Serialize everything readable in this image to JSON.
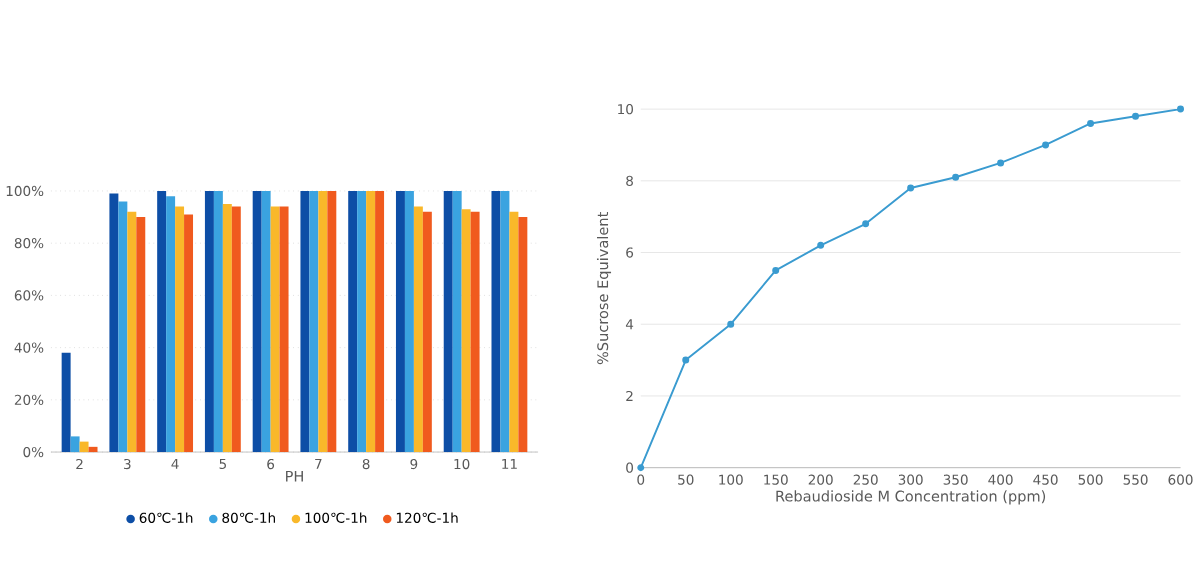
{
  "chart_data": [
    {
      "type": "bar",
      "xlabel": "PH",
      "categories": [
        "2",
        "3",
        "4",
        "5",
        "6",
        "7",
        "8",
        "9",
        "10",
        "11"
      ],
      "series": [
        {
          "name": "60℃-1h",
          "color": "#0d4ea6",
          "values": [
            38,
            99,
            100,
            100,
            100,
            100,
            100,
            100,
            100,
            100
          ]
        },
        {
          "name": "80℃-1h",
          "color": "#3aa3e0",
          "values": [
            6,
            96,
            98,
            100,
            100,
            100,
            100,
            100,
            100,
            100
          ]
        },
        {
          "name": "100℃-1h",
          "color": "#f9b82a",
          "values": [
            4,
            92,
            94,
            95,
            94,
            100,
            100,
            94,
            93,
            92
          ]
        },
        {
          "name": "120℃-1h",
          "color": "#f05a1e",
          "values": [
            2,
            90,
            91,
            94,
            94,
            100,
            100,
            92,
            92,
            90
          ]
        }
      ],
      "ylim": [
        0,
        100
      ],
      "yticks": [
        {
          "value": 0,
          "label": "0%"
        },
        {
          "value": 20,
          "label": "20%"
        },
        {
          "value": 40,
          "label": "40%"
        },
        {
          "value": 60,
          "label": "60%"
        },
        {
          "value": 80,
          "label": "80%"
        },
        {
          "value": 100,
          "label": "100%"
        }
      ],
      "grid": "y",
      "legend": "bottom"
    },
    {
      "type": "line",
      "xlabel": "Rebaudioside M Concentration (ppm)",
      "ylabel": "%Sucrose Equivalent",
      "x": [
        0,
        50,
        100,
        150,
        200,
        250,
        300,
        350,
        400,
        450,
        500,
        550,
        600
      ],
      "series": [
        {
          "color": "#3a9bd0",
          "values": [
            0,
            3,
            4,
            5.5,
            6.2,
            6.8,
            7.8,
            8.1,
            8.5,
            9,
            9.6,
            9.8,
            10
          ]
        }
      ],
      "xlim": [
        0,
        600
      ],
      "xticks": [
        0,
        50,
        100,
        150,
        200,
        250,
        300,
        350,
        400,
        450,
        500,
        550,
        600
      ],
      "ylim": [
        0,
        10
      ],
      "yticks": [
        0,
        2,
        4,
        6,
        8,
        10
      ],
      "grid": "y",
      "marker": "circle",
      "line_style": "solid"
    }
  ]
}
